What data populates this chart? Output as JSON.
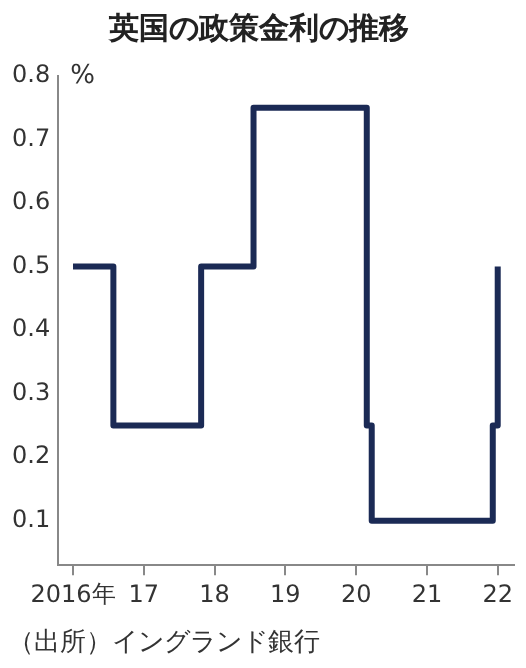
{
  "chart_data": {
    "type": "step",
    "title": "英国の政策金利の推移",
    "ylabel": "%",
    "annotations": [
      "（出所）イングランド銀行"
    ],
    "x": [
      2016,
      2016.57,
      2017.81,
      2018.55,
      2020.15,
      2020.22,
      2021.93,
      2022.0
    ],
    "series": [
      {
        "color": "#1b2a55",
        "values": [
          0.5,
          0.25,
          0.5,
          0.75,
          0.25,
          0.1,
          0.25,
          0.5
        ]
      }
    ],
    "xlim": [
      2015.79,
      2022.23
    ],
    "xticks": [
      {
        "value": 2016,
        "label": "2016年"
      },
      {
        "value": 2017,
        "label": "17"
      },
      {
        "value": 2018,
        "label": "18"
      },
      {
        "value": 2019,
        "label": "19"
      },
      {
        "value": 2020,
        "label": "20"
      },
      {
        "value": 2021,
        "label": "21"
      },
      {
        "value": 2022,
        "label": "22"
      }
    ],
    "ylim": [
      0.03,
      0.8
    ],
    "yticks": [
      0.1,
      0.2,
      0.3,
      0.4,
      0.5,
      0.6,
      0.7,
      0.8
    ],
    "grid": false,
    "legend": false,
    "marker": "none",
    "line_style": "solid"
  }
}
